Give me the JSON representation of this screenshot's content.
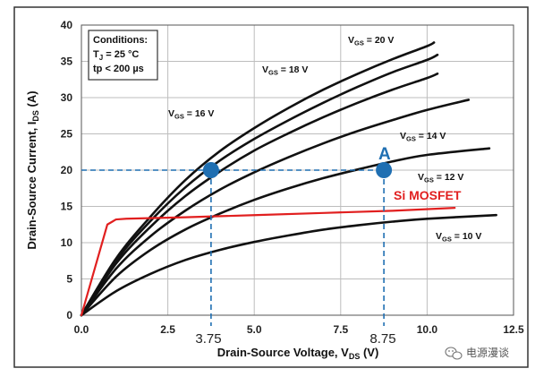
{
  "chart_data": {
    "type": "line",
    "xlabel": "Drain-Source Voltage, V",
    "xlabel_sub": "DS",
    "xlabel_unit": " (V)",
    "ylabel": "Drain-Source Current, I",
    "ylabel_sub": "DS",
    "ylabel_unit": " (A)",
    "xlim": [
      0,
      12.5
    ],
    "ylim": [
      0,
      40
    ],
    "x_ticks": [
      "0.0",
      "2.5",
      "5.0",
      "7.5",
      "10.0",
      "12.5"
    ],
    "y_ticks": [
      "0",
      "5",
      "10",
      "15",
      "20",
      "25",
      "30",
      "35",
      "40"
    ],
    "grid": true,
    "conditions": {
      "title": "Conditions:",
      "line1_main": "T",
      "line1_sub": "J",
      "line1_rest": " = 25 °C",
      "line2": "tp < 200 µs"
    },
    "series": [
      {
        "name": "20 V",
        "label_main": "V",
        "label_sub": "GS",
        "label_rest": " = 20 V",
        "color": "#111111",
        "points": [
          [
            0,
            0
          ],
          [
            1,
            7.8
          ],
          [
            2,
            13.6
          ],
          [
            3,
            18.6
          ],
          [
            4,
            22.6
          ],
          [
            5,
            25.8
          ],
          [
            6,
            28.6
          ],
          [
            7,
            31.1
          ],
          [
            8,
            33.3
          ],
          [
            9,
            35.3
          ],
          [
            10,
            37.1
          ],
          [
            10.2,
            37.6
          ]
        ]
      },
      {
        "name": "18 V",
        "label_main": "V",
        "label_sub": "GS",
        "label_rest": " = 18 V",
        "color": "#111111",
        "points": [
          [
            0,
            0
          ],
          [
            1,
            7.5
          ],
          [
            2,
            13.0
          ],
          [
            3,
            17.6
          ],
          [
            4,
            21.3
          ],
          [
            5,
            24.3
          ],
          [
            6,
            26.9
          ],
          [
            7,
            29.3
          ],
          [
            8,
            31.5
          ],
          [
            9,
            33.5
          ],
          [
            10,
            35.2
          ],
          [
            10.3,
            35.9
          ]
        ]
      },
      {
        "name": "16 V",
        "label_main": "V",
        "label_sub": "GS",
        "label_rest": " = 16 V",
        "color": "#111111",
        "points": [
          [
            0,
            0
          ],
          [
            1,
            7.1
          ],
          [
            2,
            12.2
          ],
          [
            3,
            16.4
          ],
          [
            4,
            19.8
          ],
          [
            5,
            22.7
          ],
          [
            6,
            25.1
          ],
          [
            7,
            27.3
          ],
          [
            8,
            29.3
          ],
          [
            9,
            31.1
          ],
          [
            10,
            32.7
          ],
          [
            10.3,
            33.3
          ]
        ]
      },
      {
        "name": "14 V",
        "label_main": "V",
        "label_sub": "GS",
        "label_rest": " = 14 V",
        "color": "#111111",
        "points": [
          [
            0,
            0
          ],
          [
            1,
            6.4
          ],
          [
            2,
            10.9
          ],
          [
            3,
            14.4
          ],
          [
            4,
            17.3
          ],
          [
            5,
            19.7
          ],
          [
            6,
            21.8
          ],
          [
            7,
            23.7
          ],
          [
            8,
            25.4
          ],
          [
            9,
            26.9
          ],
          [
            10,
            28.3
          ],
          [
            11.2,
            29.7
          ]
        ]
      },
      {
        "name": "12 V",
        "label_main": "V",
        "label_sub": "GS",
        "label_rest": " = 12 V",
        "color": "#111111",
        "points": [
          [
            0,
            0
          ],
          [
            1,
            5.3
          ],
          [
            2,
            9.0
          ],
          [
            3,
            11.8
          ],
          [
            4,
            14.0
          ],
          [
            5,
            15.9
          ],
          [
            6,
            17.5
          ],
          [
            7,
            18.9
          ],
          [
            8,
            20.1
          ],
          [
            9,
            21.2
          ],
          [
            10,
            22.1
          ],
          [
            11.8,
            23.0
          ]
        ]
      },
      {
        "name": "10 V",
        "label_main": "V",
        "label_sub": "GS",
        "label_rest": " = 10 V",
        "color": "#111111",
        "points": [
          [
            0,
            0
          ],
          [
            1,
            3.3
          ],
          [
            2,
            5.7
          ],
          [
            3,
            7.6
          ],
          [
            4,
            9.0
          ],
          [
            5,
            10.1
          ],
          [
            6,
            11.0
          ],
          [
            7,
            11.8
          ],
          [
            8,
            12.4
          ],
          [
            9,
            12.9
          ],
          [
            10,
            13.3
          ],
          [
            12,
            13.8
          ]
        ]
      },
      {
        "name": "Si MOSFET",
        "color": "#e11f1f",
        "points": [
          [
            0,
            0
          ],
          [
            0.75,
            12.5
          ],
          [
            1.0,
            13.2
          ],
          [
            1.3,
            13.3
          ],
          [
            3,
            13.5
          ],
          [
            5,
            13.8
          ],
          [
            7,
            14.1
          ],
          [
            9,
            14.4
          ],
          [
            10.8,
            14.8
          ]
        ]
      }
    ],
    "annotations": {
      "point_label": "A",
      "mosfet_label": "Si MOSFET",
      "point_left": {
        "x": 3.75,
        "y": 20
      },
      "point_right": {
        "x": 8.75,
        "y": 20
      },
      "x_marker_left": "3.75",
      "x_marker_right": "8.75",
      "marker_color": "#1f6fb2"
    }
  },
  "watermark": {
    "icon": "wechat-icon",
    "text": "电源漫谈"
  }
}
